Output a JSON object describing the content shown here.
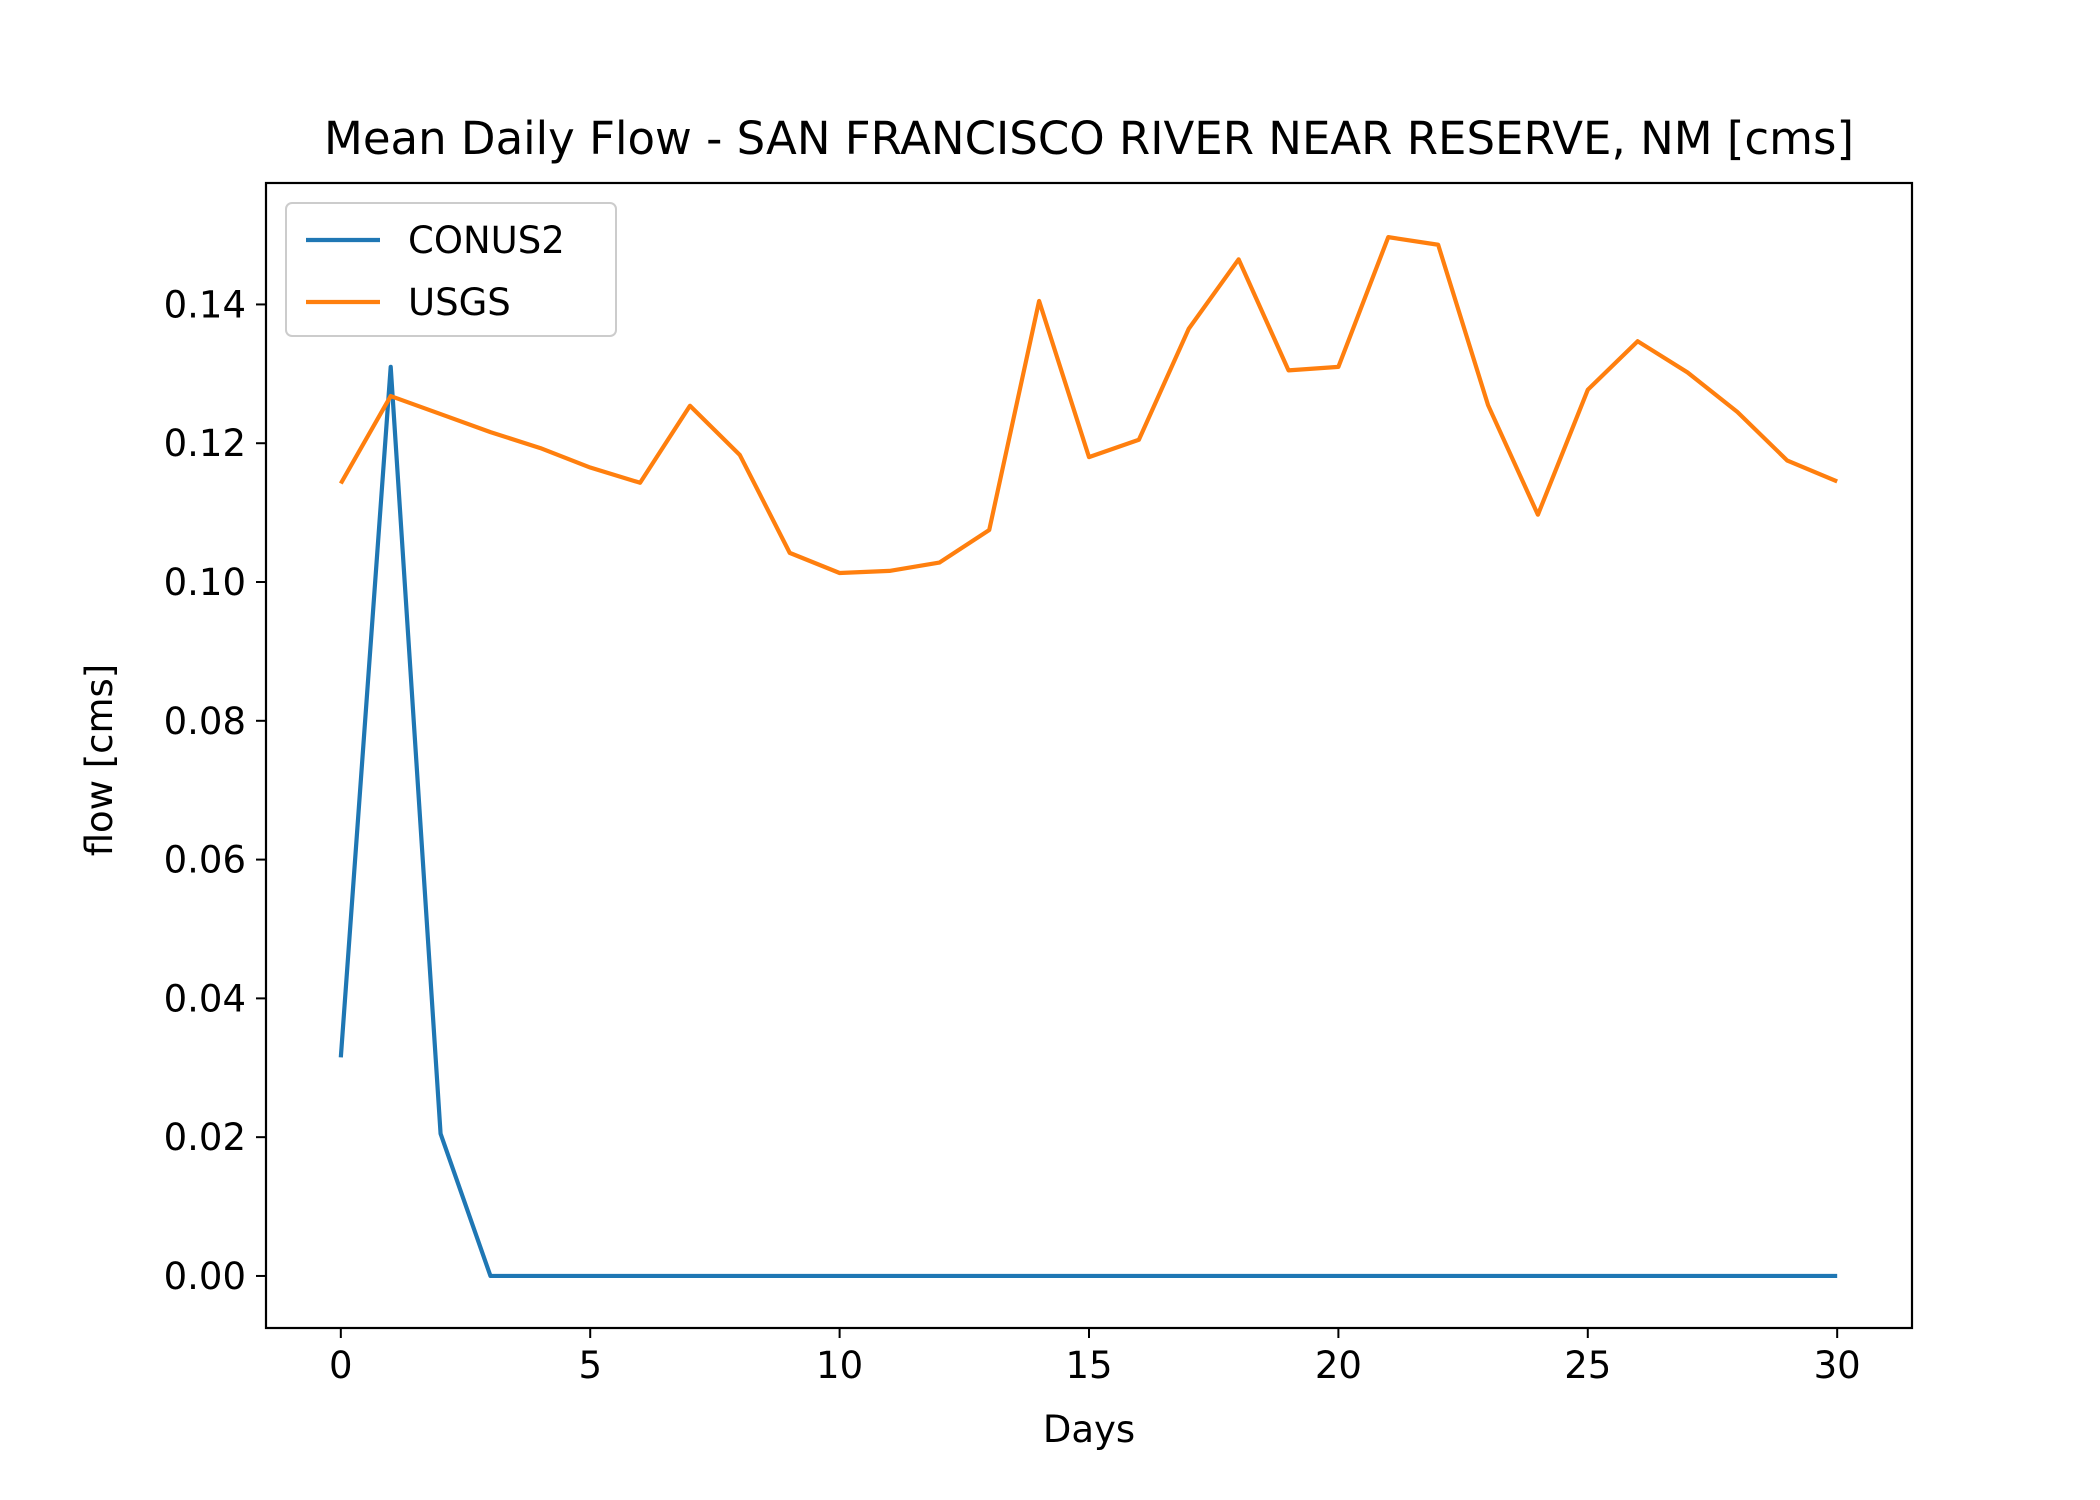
{
  "chart_data": {
    "type": "line",
    "title": "Mean Daily Flow - SAN FRANCISCO RIVER NEAR RESERVE, NM [cms]",
    "xlabel": "Days",
    "ylabel": "flow [cms]",
    "xlim": [
      -1.5,
      31.5
    ],
    "ylim": [
      -0.0075,
      0.1575
    ],
    "xticks": [
      0,
      5,
      10,
      15,
      20,
      25,
      30
    ],
    "xtick_labels": [
      "0",
      "5",
      "10",
      "15",
      "20",
      "25",
      "30"
    ],
    "yticks": [
      0.0,
      0.02,
      0.04,
      0.06,
      0.08,
      0.1,
      0.12,
      0.14
    ],
    "ytick_labels": [
      "0.00",
      "0.02",
      "0.04",
      "0.06",
      "0.08",
      "0.10",
      "0.12",
      "0.14"
    ],
    "grid": false,
    "legend_position": "top-left",
    "x": [
      0,
      1,
      2,
      3,
      4,
      5,
      6,
      7,
      8,
      9,
      10,
      11,
      12,
      13,
      14,
      15,
      16,
      17,
      18,
      19,
      20,
      21,
      22,
      23,
      24,
      25,
      26,
      27,
      28,
      29,
      30
    ],
    "series": [
      {
        "name": "CONUS2",
        "color": "#1f77b4",
        "values": [
          0.0315,
          0.131,
          0.0205,
          0.0,
          0.0,
          0.0,
          0.0,
          0.0,
          0.0,
          0.0,
          0.0,
          0.0,
          0.0,
          0.0,
          0.0,
          0.0,
          0.0,
          0.0,
          0.0,
          0.0,
          0.0,
          0.0,
          0.0,
          0.0,
          0.0,
          0.0,
          0.0,
          0.0,
          0.0,
          0.0,
          0.0
        ]
      },
      {
        "name": "USGS",
        "color": "#ff7f0e",
        "values": [
          0.1142,
          0.1268,
          0.1242,
          0.1216,
          0.1193,
          0.1165,
          0.1143,
          0.1254,
          0.1183,
          0.1042,
          0.1013,
          0.1016,
          0.1028,
          0.1075,
          0.1405,
          0.118,
          0.1205,
          0.1365,
          0.1465,
          0.1305,
          0.131,
          0.1497,
          0.1486,
          0.1255,
          0.1097,
          0.1277,
          0.1347,
          0.1302,
          0.1245,
          0.1175,
          0.1145
        ]
      }
    ]
  }
}
